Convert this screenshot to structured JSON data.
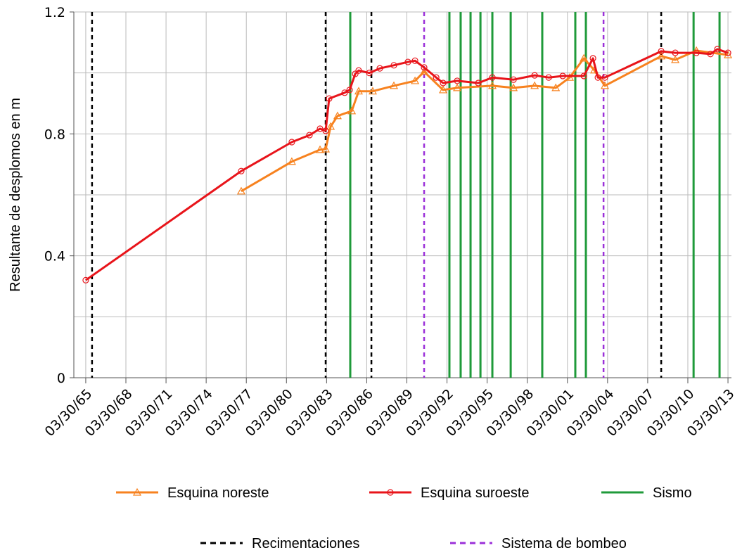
{
  "chart_data": {
    "type": "line",
    "y_label": "Resultante de desplomos en m",
    "xlim": [
      1964.35,
      2013.5
    ],
    "ylim": [
      0,
      1.2
    ],
    "yticks": [
      0,
      0.4,
      0.8,
      1.2
    ],
    "yminorticks": [
      0.2,
      0.6,
      1.0
    ],
    "xticks": [
      {
        "value": 1965.24,
        "label": "03/30/65"
      },
      {
        "value": 1968.24,
        "label": "03/30/68"
      },
      {
        "value": 1971.24,
        "label": "03/30/71"
      },
      {
        "value": 1974.24,
        "label": "03/30/74"
      },
      {
        "value": 1977.24,
        "label": "03/30/77"
      },
      {
        "value": 1980.24,
        "label": "03/30/80"
      },
      {
        "value": 1983.24,
        "label": "03/30/83"
      },
      {
        "value": 1986.24,
        "label": "03/30/86"
      },
      {
        "value": 1989.24,
        "label": "03/30/89"
      },
      {
        "value": 1992.24,
        "label": "03/30/92"
      },
      {
        "value": 1995.24,
        "label": "03/30/95"
      },
      {
        "value": 1998.24,
        "label": "03/30/98"
      },
      {
        "value": 2001.24,
        "label": "03/30/01"
      },
      {
        "value": 2004.24,
        "label": "03/30/04"
      },
      {
        "value": 2007.24,
        "label": "03/30/07"
      },
      {
        "value": 2010.24,
        "label": "03/30/10"
      },
      {
        "value": 2013.24,
        "label": "03/30/13"
      }
    ],
    "grid": true,
    "legend": "bottom",
    "series": [
      {
        "name": "Esquina noreste",
        "color": "#f7821f",
        "marker": "triangle",
        "x": [
          1976.86,
          1980.64,
          1982.75,
          1983.17,
          1983.54,
          1984.06,
          1985.12,
          1985.64,
          1986.69,
          1988.27,
          1989.85,
          1990.53,
          1991.95,
          1993.0,
          1995.63,
          1997.21,
          1998.79,
          2000.37,
          2001.41,
          2002.47,
          2003.25,
          2004.04,
          2008.25,
          2009.3,
          2010.88,
          2013.24
        ],
        "values": [
          0.612,
          0.709,
          0.748,
          0.75,
          0.824,
          0.859,
          0.875,
          0.94,
          0.94,
          0.958,
          0.974,
          1.004,
          0.944,
          0.951,
          0.958,
          0.951,
          0.958,
          0.951,
          0.985,
          1.048,
          1.009,
          0.958,
          1.055,
          1.043,
          1.073,
          1.059
        ]
      },
      {
        "name": "Esquina suroeste",
        "color": "#e8141a",
        "marker": "circle",
        "x": [
          1965.24,
          1976.86,
          1980.64,
          1981.96,
          1982.75,
          1983.17,
          1983.43,
          1984.59,
          1984.96,
          1985.38,
          1985.64,
          1986.43,
          1987.22,
          1988.27,
          1989.32,
          1989.85,
          1990.53,
          1991.43,
          1991.95,
          1993.0,
          1994.58,
          1995.63,
          1997.21,
          1998.79,
          1999.84,
          2000.89,
          2002.47,
          2003.15,
          2003.52,
          2004.04,
          2008.25,
          2009.3,
          2010.88,
          2011.93,
          2012.45,
          2013.24
        ],
        "values": [
          0.32,
          0.678,
          0.773,
          0.796,
          0.817,
          0.81,
          0.916,
          0.935,
          0.944,
          0.997,
          1.008,
          1.0,
          1.015,
          1.025,
          1.036,
          1.04,
          1.018,
          0.985,
          0.967,
          0.974,
          0.967,
          0.985,
          0.978,
          0.992,
          0.985,
          0.99,
          0.99,
          1.048,
          0.985,
          0.985,
          1.071,
          1.066,
          1.066,
          1.062,
          1.078,
          1.066
        ]
      }
    ],
    "vlines": [
      {
        "name": "Sismo",
        "color": "#1f9a3a",
        "dashed": false,
        "x": [
          1985.01,
          1992.42,
          1993.26,
          1994.0,
          1994.74,
          1995.63,
          1997.0,
          1999.36,
          2001.83,
          2002.62,
          2010.67,
          2012.61
        ]
      },
      {
        "name": "Recimentaciones",
        "color": "#000000",
        "dashed": true,
        "x": [
          1965.71,
          1983.17,
          1986.59,
          2008.25
        ]
      },
      {
        "name": "Sistema de bombeo",
        "color": "#9b30d9",
        "dashed": true,
        "x": [
          1990.53,
          2003.94
        ]
      }
    ]
  }
}
